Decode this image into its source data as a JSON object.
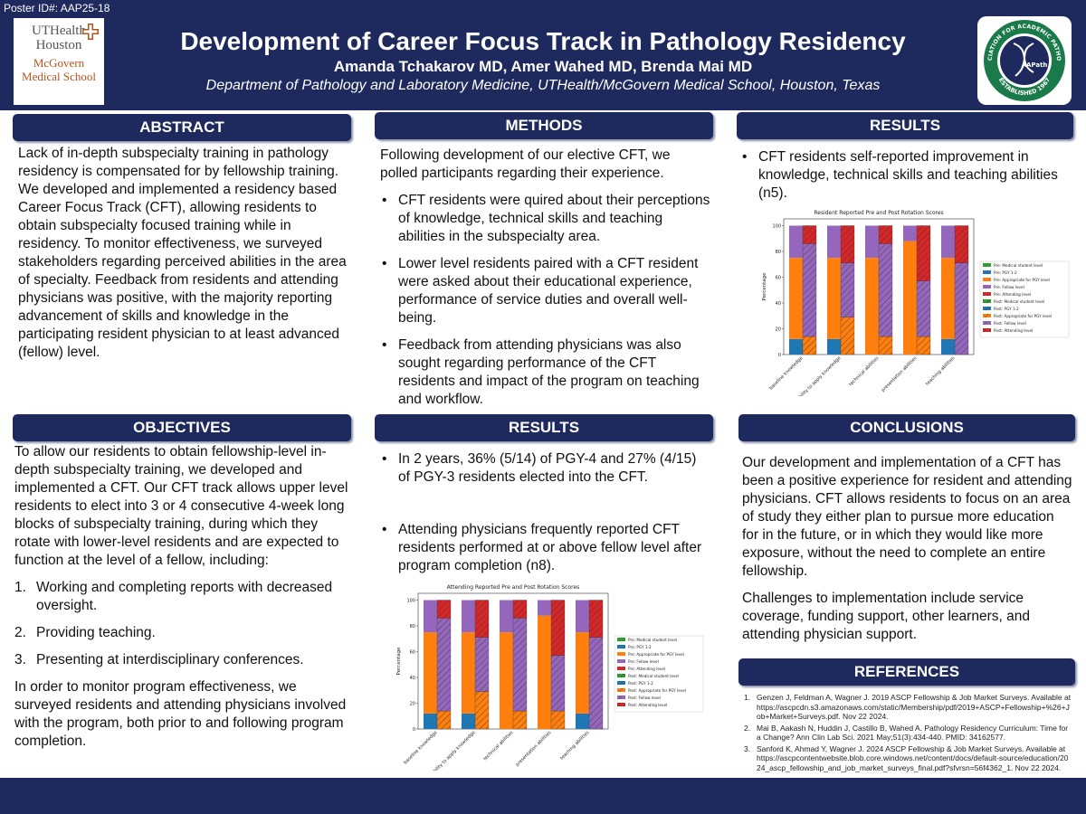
{
  "header": {
    "poster_id": "Poster ID#: AAP25-18",
    "title": "Development of Career Focus Track in Pathology Residency",
    "authors": "Amanda Tchakarov MD, Amer Wahed MD, Brenda Mai MD",
    "affiliation": "Department of Pathology and Laboratory Medicine, UTHealth/McGovern Medical School, Houston, Texas",
    "left_logo": {
      "line1": "UTHealth",
      "line2": "Houston",
      "line3": "McGovern",
      "line4": "Medical School"
    },
    "right_logo": {
      "ring_text": "ASSOCIATION FOR ACADEMIC PATHOLOGY",
      "bottom_text": "ESTABLISHED 1967",
      "center_text": "AAPath"
    }
  },
  "sections": {
    "abstract": {
      "heading": "ABSTRACT",
      "body": "Lack of in-depth subspecialty training in pathology residency is compensated for by fellowship training. We developed and implemented a residency based Career Focus Track (CFT), allowing residents to obtain subspecialty focused training while in residency. To monitor effectiveness, we surveyed stakeholders regarding perceived abilities in the area of specialty. Feedback from residents and attending physicians was positive, with the majority reporting advancement of skills and knowledge in the participating resident physician to at least advanced (fellow) level."
    },
    "objectives": {
      "heading": "OBJECTIVES",
      "intro": "To allow our residents to obtain fellowship-level in-depth subspecialty training, we developed and implemented a CFT. Our CFT track allows upper level residents to elect into 3 or 4 consecutive 4-week long blocks of subspecialty training, during which they rotate with lower-level residents and are expected to function at the level of a fellow, including:",
      "items": [
        {
          "num": "1.",
          "text": "Working and completing reports with decreased oversight."
        },
        {
          "num": "2.",
          "text": "Providing teaching."
        },
        {
          "num": "3.",
          "text": "Presenting at interdisciplinary conferences."
        }
      ],
      "outro": "In order to monitor program effectiveness, we surveyed residents and attending physicians involved with the program, both prior to and following program completion."
    },
    "methods": {
      "heading": "METHODS",
      "intro": "Following development of our elective CFT, we polled participants regarding their experience.",
      "bullets": [
        "CFT residents were quired about their perceptions of knowledge, technical skills and teaching abilities in the subspecialty area.",
        "Lower level residents paired with a CFT resident were asked about their educational experience, performance of service duties and overall well-being.",
        "Feedback from attending physicians was also sought regarding performance of the CFT residents and impact of the program on teaching and workflow."
      ]
    },
    "results_mid": {
      "heading": "RESULTS",
      "bullets": [
        "In 2 years, 36% (5/14) of PGY-4 and 27% (4/15) of PGY-3 residents elected into the CFT.",
        "Attending physicians frequently reported CFT residents performed at or above fellow level after program completion (n8)."
      ]
    },
    "results_right": {
      "heading": "RESULTS",
      "bullets": [
        "CFT residents self-reported improvement in knowledge, technical skills and teaching abilities (n5)."
      ]
    },
    "conclusions": {
      "heading": "CONCLUSIONS",
      "paragraphs": [
        "Our development and implementation of a CFT has been a positive experience for resident and attending physicians. CFT allows residents to focus on an area of study they either plan to pursue more education for in the future, or in which they would like more exposure, without the need to complete an entire fellowship.",
        "Challenges to implementation include service coverage, funding support, other learners, and attending physician support."
      ]
    },
    "references": {
      "heading": "REFERENCES",
      "items": [
        {
          "num": "1.",
          "text": "Genzen J, Feldman A, Wagner J. 2019 ASCP Fellowship & Job Market Surveys. Available at https://ascpcdn.s3.amazonaws.com/static/Membership/pdf/2019+ASCP+Fellowship+%26+Job+Market+Surveys.pdf. Nov 22 2024."
        },
        {
          "num": "2.",
          "text": "Mai B, Aakash N, Huddin J, Castillo B, Wahed A. Pathology Residency Curriculum: Time for a Change? Ann Clin Lab Sci. 2021 May;51(3):434-440. PMID: 34162577."
        },
        {
          "num": "3.",
          "text": "Sanford K, Ahmad Y, Wagner J. 2024 ASCP Fellowship & Job Market Surveys. Available at https://ascpcontentwebsite.blob.core.windows.net/content/docs/default-source/education/2024_ascp_fellowship_and_job_market_surveys_final.pdf?sfvrsn=56f4362_1. Nov 22 2024."
        }
      ]
    }
  },
  "chart_data": [
    {
      "type": "bar",
      "title": "Resident Reported Pre and Post Rotation Scores",
      "xlabel": "",
      "ylabel": "Percentage",
      "ylim": [
        0,
        100
      ],
      "yticks": [
        "0",
        "20",
        "40",
        "60",
        "80",
        "100"
      ],
      "categories": [
        "baseline knowledge",
        "ability to apply knowledge",
        "technical abilities",
        "presentation abilities",
        "teaching abilities"
      ],
      "legend_position": "right",
      "series_pre": [
        {
          "name": "Pre: Medical student level",
          "color": "#2ca02c",
          "values": [
            0,
            0,
            0,
            0,
            0
          ]
        },
        {
          "name": "Pre: PGY 1-2",
          "color": "#1f77b4",
          "values": [
            12,
            12,
            0,
            0,
            12
          ]
        },
        {
          "name": "Pre: Appropriate for PGY level",
          "color": "#ff7f0e",
          "values": [
            63,
            63,
            75,
            88,
            63
          ]
        },
        {
          "name": "Pre: Fellow level",
          "color": "#9467bd",
          "values": [
            25,
            25,
            25,
            12,
            25
          ]
        },
        {
          "name": "Pre: Attending level",
          "color": "#d62728",
          "values": [
            0,
            0,
            0,
            0,
            0
          ]
        }
      ],
      "series_post": [
        {
          "name": "Post: Medical student level",
          "color": "#2ca02c",
          "values": [
            0,
            0,
            0,
            0,
            0
          ]
        },
        {
          "name": "Post: PGY 1-2",
          "color": "#1f77b4",
          "values": [
            0,
            0,
            0,
            0,
            0
          ]
        },
        {
          "name": "Post: Appropriate for PGY level",
          "color": "#ff7f0e",
          "values": [
            14,
            29,
            14,
            14,
            0
          ]
        },
        {
          "name": "Post: Fellow level",
          "color": "#9467bd",
          "values": [
            72,
            42,
            72,
            43,
            71
          ]
        },
        {
          "name": "Post: Attending level",
          "color": "#d62728",
          "values": [
            14,
            29,
            14,
            43,
            29
          ]
        }
      ]
    },
    {
      "type": "bar",
      "title": "Attending Reported Pre and Post Rotation Scores",
      "xlabel": "",
      "ylabel": "Percentage",
      "ylim": [
        0,
        100
      ],
      "yticks": [
        "0",
        "20",
        "40",
        "60",
        "80",
        "100"
      ],
      "categories": [
        "baseline knowledge",
        "ability to apply knowledge",
        "technical abilities",
        "presentation abilities",
        "teaching abilities"
      ],
      "legend_position": "right",
      "series_pre": [
        {
          "name": "Pre: Medical student level",
          "color": "#2ca02c",
          "values": [
            0,
            0,
            0,
            0,
            0
          ]
        },
        {
          "name": "Pre: PGY 1-2",
          "color": "#1f77b4",
          "values": [
            12,
            12,
            0,
            0,
            12
          ]
        },
        {
          "name": "Pre: Appropriate for PGY level",
          "color": "#ff7f0e",
          "values": [
            63,
            63,
            75,
            88,
            63
          ]
        },
        {
          "name": "Pre: Fellow level",
          "color": "#9467bd",
          "values": [
            25,
            25,
            25,
            12,
            25
          ]
        },
        {
          "name": "Pre: Attending level",
          "color": "#d62728",
          "values": [
            0,
            0,
            0,
            0,
            0
          ]
        }
      ],
      "series_post": [
        {
          "name": "Post: Medical student level",
          "color": "#2ca02c",
          "values": [
            0,
            0,
            0,
            0,
            0
          ]
        },
        {
          "name": "Post: PGY 1-2",
          "color": "#1f77b4",
          "values": [
            0,
            0,
            0,
            0,
            0
          ]
        },
        {
          "name": "Post: Appropriate for PGY level",
          "color": "#ff7f0e",
          "values": [
            14,
            29,
            14,
            14,
            0
          ]
        },
        {
          "name": "Post: Fellow level",
          "color": "#9467bd",
          "values": [
            72,
            42,
            72,
            43,
            71
          ]
        },
        {
          "name": "Post: Attending level",
          "color": "#d62728",
          "values": [
            14,
            29,
            14,
            43,
            29
          ]
        }
      ]
    }
  ]
}
